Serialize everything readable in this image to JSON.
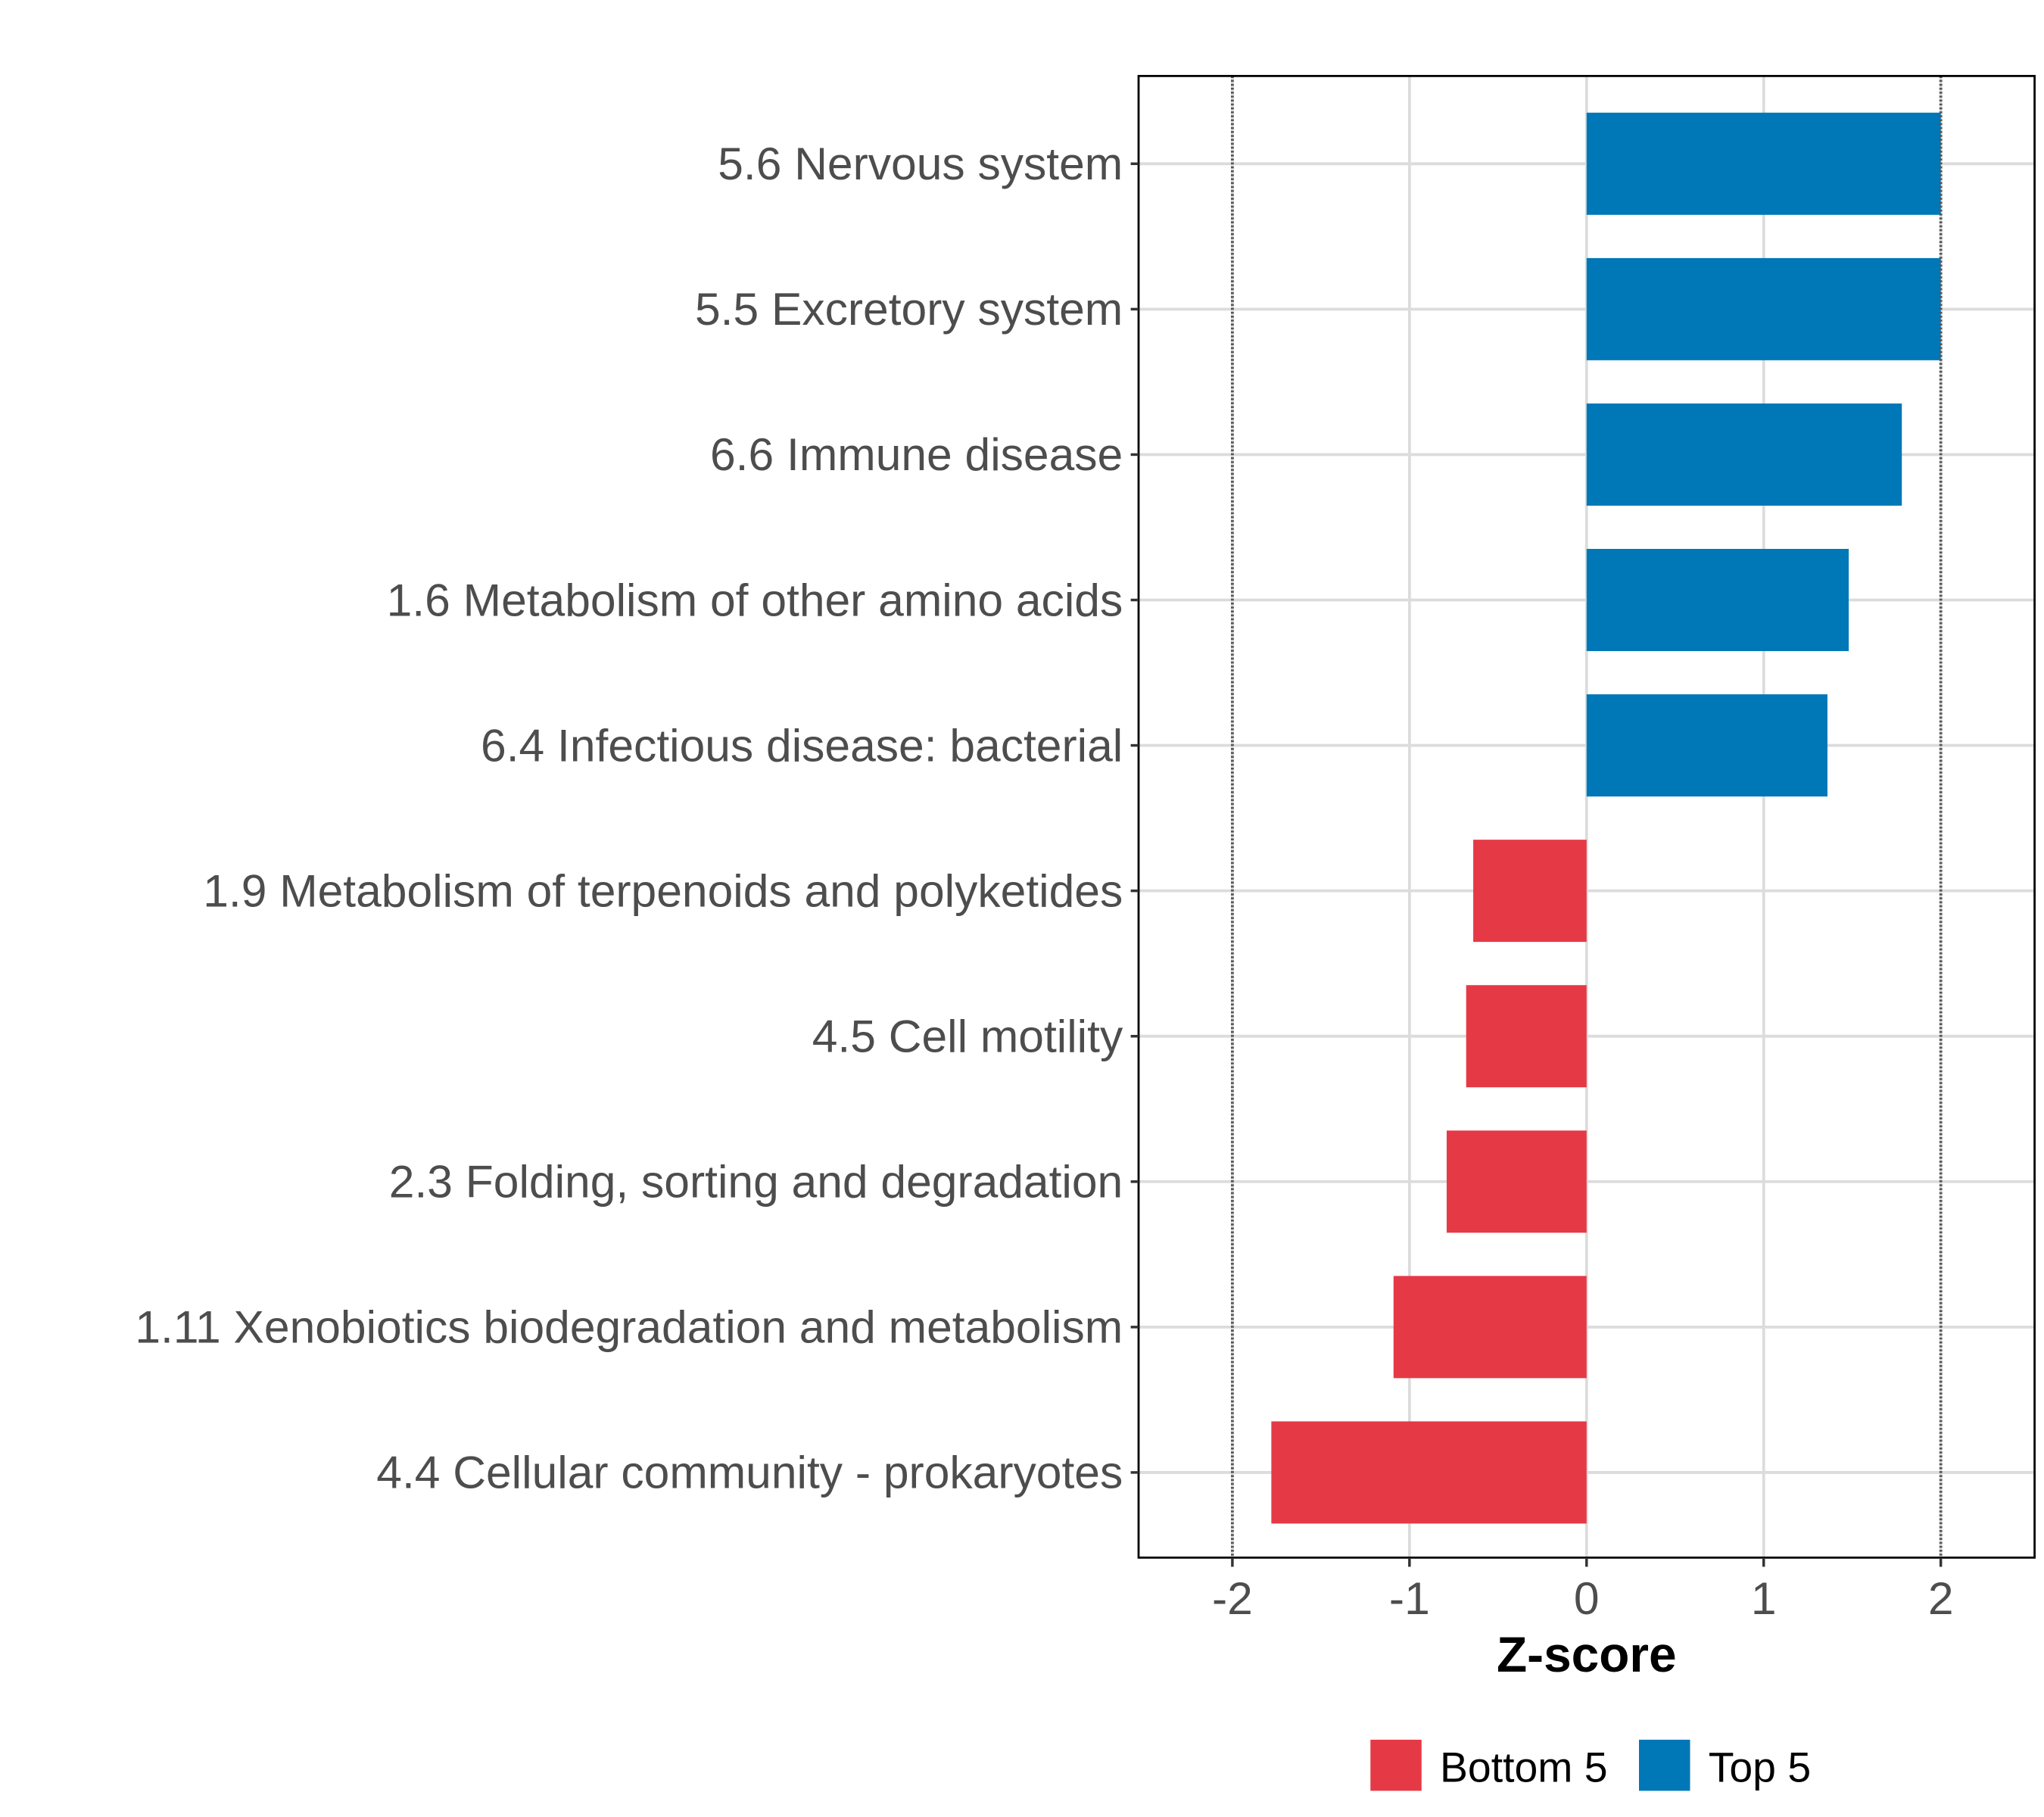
{
  "chart_data": {
    "type": "bar",
    "orientation": "horizontal",
    "title": "",
    "xlabel": "Z-score",
    "ylabel": "",
    "xlim": [
      -2.5,
      2.5
    ],
    "xticks": [
      -2,
      -1,
      0,
      1,
      2
    ],
    "xtick_labels": [
      "-2",
      "-1",
      "0",
      "1",
      "2"
    ],
    "reference_lines": [
      -2,
      2
    ],
    "grid": true,
    "categories": [
      "5.6 Nervous system",
      "5.5 Excretory system",
      "6.6 Immune disease",
      "1.6 Metabolism of other amino acids",
      "6.4 Infectious disease: bacterial",
      "1.9 Metabolism of terpenoids and polyketides",
      "4.5 Cell motility",
      "2.3 Folding, sorting and degradation",
      "1.11 Xenobiotics biodegradation and metabolism",
      "4.4 Cellular community - prokaryotes"
    ],
    "values": [
      2.0,
      2.0,
      1.78,
      1.48,
      1.36,
      -0.64,
      -0.68,
      -0.79,
      -1.09,
      -1.78
    ],
    "groups": [
      "Top 5",
      "Top 5",
      "Top 5",
      "Top 5",
      "Top 5",
      "Bottom 5",
      "Bottom 5",
      "Bottom 5",
      "Bottom 5",
      "Bottom 5"
    ],
    "legend": {
      "position": "bottom",
      "entries": [
        {
          "label": "Bottom 5",
          "color": "#E63946"
        },
        {
          "label": "Top 5",
          "color": "#0077B6"
        }
      ]
    }
  }
}
